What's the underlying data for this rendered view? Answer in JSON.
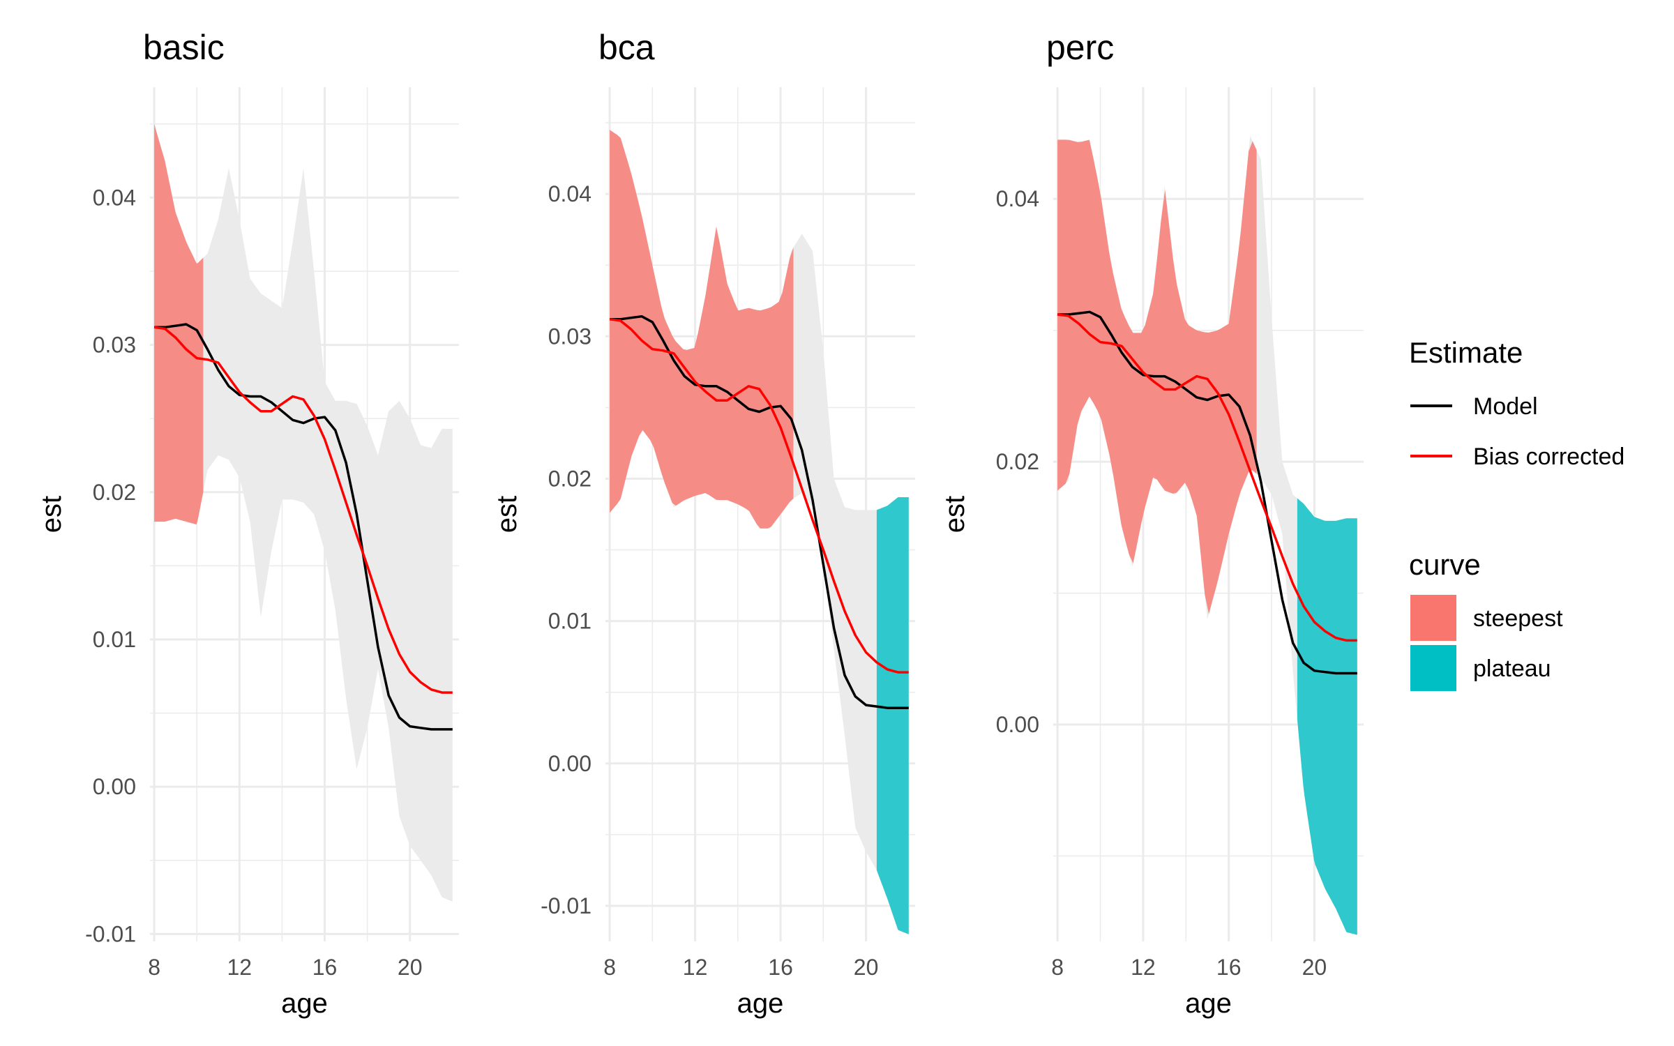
{
  "chart_data": [
    {
      "type": "line",
      "title": "basic",
      "xlabel": "age",
      "ylabel": "est",
      "xlim": [
        7.8,
        22.3
      ],
      "ylim": [
        -0.0105,
        0.0475
      ],
      "xticks": [
        8,
        12,
        16,
        20
      ],
      "xtick_labels": [
        "8",
        "12",
        "16",
        "20"
      ],
      "yticks": [
        -0.01,
        0.0,
        0.01,
        0.02,
        0.03,
        0.04
      ],
      "ytick_labels": [
        "-0.01",
        "0.00",
        "0.01",
        "0.02",
        "0.03",
        "0.04"
      ],
      "grid": true,
      "ribbon": {
        "x": [
          8.0,
          8.5,
          9.0,
          9.5,
          10.0,
          10.5,
          11.0,
          11.5,
          12.0,
          12.5,
          13.0,
          13.5,
          14.0,
          14.5,
          15.0,
          15.5,
          16.0,
          16.5,
          17.0,
          17.5,
          18.0,
          18.5,
          19.0,
          19.5,
          20.0,
          20.5,
          21.0,
          21.5,
          22.0
        ],
        "lower": [
          0.018,
          0.018,
          0.0182,
          0.018,
          0.0178,
          0.0215,
          0.0225,
          0.0222,
          0.021,
          0.018,
          0.0115,
          0.016,
          0.0195,
          0.0195,
          0.0193,
          0.0185,
          0.016,
          0.012,
          0.006,
          0.0012,
          0.004,
          0.008,
          0.004,
          -0.002,
          -0.004,
          -0.005,
          -0.006,
          -0.0075,
          -0.0078
        ],
        "upper": [
          0.045,
          0.0425,
          0.039,
          0.037,
          0.0355,
          0.0362,
          0.0385,
          0.042,
          0.0385,
          0.0345,
          0.0335,
          0.033,
          0.0325,
          0.037,
          0.042,
          0.035,
          0.0275,
          0.0262,
          0.0262,
          0.026,
          0.0245,
          0.0225,
          0.0255,
          0.0262,
          0.025,
          0.0232,
          0.023,
          0.0243,
          0.0243
        ]
      },
      "highlights": [
        {
          "curve": "steepest",
          "x_from": 8.0,
          "x_to": 10.3
        },
        {
          "curve": "plateau",
          "x_from": null,
          "x_to": null
        }
      ],
      "series": [
        {
          "name": "Model",
          "x": [
            8.0,
            8.5,
            9.0,
            9.5,
            10.0,
            10.5,
            11.0,
            11.5,
            12.0,
            12.5,
            13.0,
            13.5,
            14.0,
            14.5,
            15.0,
            15.5,
            16.0,
            16.5,
            17.0,
            17.5,
            18.0,
            18.5,
            19.0,
            19.5,
            20.0,
            20.5,
            21.0,
            21.5,
            22.0
          ],
          "y": [
            0.0312,
            0.0312,
            0.0313,
            0.0314,
            0.031,
            0.0297,
            0.0283,
            0.0272,
            0.0266,
            0.0265,
            0.0265,
            0.0261,
            0.0255,
            0.0249,
            0.0247,
            0.025,
            0.0251,
            0.0242,
            0.022,
            0.0185,
            0.014,
            0.0095,
            0.0062,
            0.0047,
            0.0041,
            0.004,
            0.0039,
            0.0039,
            0.0039
          ]
        },
        {
          "name": "Bias corrected",
          "x": [
            8.0,
            8.5,
            9.0,
            9.5,
            10.0,
            10.5,
            11.0,
            11.5,
            12.0,
            12.5,
            13.0,
            13.5,
            14.0,
            14.5,
            15.0,
            15.5,
            16.0,
            16.5,
            17.0,
            17.5,
            18.0,
            18.5,
            19.0,
            19.5,
            20.0,
            20.5,
            21.0,
            21.5,
            22.0
          ],
          "y": [
            0.0312,
            0.0311,
            0.0305,
            0.0297,
            0.0291,
            0.029,
            0.0288,
            0.0278,
            0.0268,
            0.0261,
            0.0255,
            0.0255,
            0.026,
            0.0265,
            0.0263,
            0.0252,
            0.0236,
            0.0215,
            0.0193,
            0.0171,
            0.015,
            0.0128,
            0.0107,
            0.009,
            0.0078,
            0.0071,
            0.0066,
            0.0064,
            0.0064
          ]
        }
      ]
    },
    {
      "type": "line",
      "title": "bca",
      "xlabel": "age",
      "ylabel": "est",
      "xlim": [
        7.8,
        22.3
      ],
      "ylim": [
        -0.0125,
        0.0475
      ],
      "xticks": [
        8,
        12,
        16,
        20
      ],
      "xtick_labels": [
        "8",
        "12",
        "16",
        "20"
      ],
      "yticks": [
        -0.01,
        0.0,
        0.01,
        0.02,
        0.03,
        0.04
      ],
      "ytick_labels": [
        "-0.01",
        "0.00",
        "0.01",
        "0.02",
        "0.03",
        "0.04"
      ],
      "grid": true,
      "ribbon": {
        "x": [
          8.0,
          8.5,
          9.0,
          9.5,
          10.0,
          10.5,
          11.0,
          11.5,
          12.0,
          12.5,
          13.0,
          13.5,
          14.0,
          14.5,
          15.0,
          15.5,
          16.0,
          16.5,
          17.0,
          17.5,
          18.0,
          18.5,
          19.0,
          19.5,
          20.0,
          20.5,
          21.0,
          21.5,
          22.0
        ],
        "lower": [
          0.0176,
          0.0185,
          0.0215,
          0.0235,
          0.0225,
          0.02,
          0.018,
          0.0185,
          0.0188,
          0.019,
          0.0185,
          0.0185,
          0.0182,
          0.0178,
          0.0165,
          0.0165,
          0.0175,
          0.0185,
          0.019,
          0.018,
          0.014,
          0.008,
          0.002,
          -0.0045,
          -0.0062,
          -0.0075,
          -0.0095,
          -0.0117,
          -0.012
        ],
        "upper": [
          0.0445,
          0.044,
          0.0415,
          0.0385,
          0.035,
          0.0315,
          0.0298,
          0.029,
          0.0292,
          0.033,
          0.0378,
          0.0337,
          0.0318,
          0.032,
          0.0318,
          0.032,
          0.0325,
          0.036,
          0.0372,
          0.036,
          0.029,
          0.02,
          0.018,
          0.0178,
          0.0178,
          0.0178,
          0.0181,
          0.0187,
          0.0187
        ]
      },
      "highlights": [
        {
          "curve": "steepest",
          "x_from": 8.0,
          "x_to": 16.6
        },
        {
          "curve": "plateau",
          "x_from": 20.5,
          "x_to": 22.0
        }
      ],
      "series": [
        {
          "name": "Model",
          "x": [
            8.0,
            8.5,
            9.0,
            9.5,
            10.0,
            10.5,
            11.0,
            11.5,
            12.0,
            12.5,
            13.0,
            13.5,
            14.0,
            14.5,
            15.0,
            15.5,
            16.0,
            16.5,
            17.0,
            17.5,
            18.0,
            18.5,
            19.0,
            19.5,
            20.0,
            20.5,
            21.0,
            21.5,
            22.0
          ],
          "y": [
            0.0312,
            0.0312,
            0.0313,
            0.0314,
            0.031,
            0.0297,
            0.0283,
            0.0272,
            0.0266,
            0.0265,
            0.0265,
            0.0261,
            0.0255,
            0.0249,
            0.0247,
            0.025,
            0.0251,
            0.0242,
            0.022,
            0.0185,
            0.014,
            0.0095,
            0.0062,
            0.0047,
            0.0041,
            0.004,
            0.0039,
            0.0039,
            0.0039
          ]
        },
        {
          "name": "Bias corrected",
          "x": [
            8.0,
            8.5,
            9.0,
            9.5,
            10.0,
            10.5,
            11.0,
            11.5,
            12.0,
            12.5,
            13.0,
            13.5,
            14.0,
            14.5,
            15.0,
            15.5,
            16.0,
            16.5,
            17.0,
            17.5,
            18.0,
            18.5,
            19.0,
            19.5,
            20.0,
            20.5,
            21.0,
            21.5,
            22.0
          ],
          "y": [
            0.0312,
            0.0311,
            0.0305,
            0.0297,
            0.0291,
            0.029,
            0.0288,
            0.0278,
            0.0268,
            0.0261,
            0.0255,
            0.0255,
            0.026,
            0.0265,
            0.0263,
            0.0252,
            0.0236,
            0.0215,
            0.0193,
            0.0171,
            0.015,
            0.0128,
            0.0107,
            0.009,
            0.0078,
            0.0071,
            0.0066,
            0.0064,
            0.0064
          ]
        }
      ]
    },
    {
      "type": "line",
      "title": "perc",
      "xlabel": "age",
      "ylabel": "est",
      "xlim": [
        7.8,
        22.3
      ],
      "ylim": [
        -0.0165,
        0.0485
      ],
      "xticks": [
        8,
        12,
        16,
        20
      ],
      "xtick_labels": [
        "8",
        "12",
        "16",
        "20"
      ],
      "yticks": [
        0.0,
        0.02,
        0.04
      ],
      "ytick_labels": [
        "0.00",
        "0.02",
        "0.04"
      ],
      "grid": true,
      "ribbon": {
        "x": [
          8.0,
          8.5,
          9.0,
          9.5,
          10.0,
          10.5,
          11.0,
          11.5,
          12.0,
          12.5,
          13.0,
          13.5,
          14.0,
          14.5,
          15.0,
          15.5,
          16.0,
          16.5,
          17.0,
          17.5,
          18.0,
          18.5,
          19.0,
          19.5,
          20.0,
          20.5,
          21.0,
          21.5,
          22.0
        ],
        "lower": [
          0.0178,
          0.0185,
          0.0235,
          0.025,
          0.0235,
          0.02,
          0.015,
          0.012,
          0.016,
          0.019,
          0.0178,
          0.0175,
          0.0185,
          0.016,
          0.008,
          0.011,
          0.0145,
          0.0175,
          0.0195,
          0.0188,
          0.0175,
          0.0145,
          0.004,
          -0.005,
          -0.0105,
          -0.0125,
          -0.014,
          -0.0158,
          -0.016
        ],
        "upper": [
          0.0445,
          0.0445,
          0.0443,
          0.0445,
          0.0405,
          0.035,
          0.0315,
          0.0298,
          0.0298,
          0.033,
          0.041,
          0.034,
          0.0305,
          0.03,
          0.0298,
          0.03,
          0.0305,
          0.0365,
          0.0448,
          0.043,
          0.031,
          0.02,
          0.0175,
          0.0168,
          0.0158,
          0.0155,
          0.0155,
          0.0157,
          0.0157
        ]
      },
      "highlights": [
        {
          "curve": "steepest",
          "x_from": 8.0,
          "x_to": 17.3
        },
        {
          "curve": "plateau",
          "x_from": 19.2,
          "x_to": 22.0
        }
      ],
      "series": [
        {
          "name": "Model",
          "x": [
            8.0,
            8.5,
            9.0,
            9.5,
            10.0,
            10.5,
            11.0,
            11.5,
            12.0,
            12.5,
            13.0,
            13.5,
            14.0,
            14.5,
            15.0,
            15.5,
            16.0,
            16.5,
            17.0,
            17.5,
            18.0,
            18.5,
            19.0,
            19.5,
            20.0,
            20.5,
            21.0,
            21.5,
            22.0
          ],
          "y": [
            0.0312,
            0.0312,
            0.0313,
            0.0314,
            0.031,
            0.0297,
            0.0283,
            0.0272,
            0.0266,
            0.0265,
            0.0265,
            0.0261,
            0.0255,
            0.0249,
            0.0247,
            0.025,
            0.0251,
            0.0242,
            0.022,
            0.0185,
            0.014,
            0.0095,
            0.0062,
            0.0047,
            0.0041,
            0.004,
            0.0039,
            0.0039,
            0.0039
          ]
        },
        {
          "name": "Bias corrected",
          "x": [
            8.0,
            8.5,
            9.0,
            9.5,
            10.0,
            10.5,
            11.0,
            11.5,
            12.0,
            12.5,
            13.0,
            13.5,
            14.0,
            14.5,
            15.0,
            15.5,
            16.0,
            16.5,
            17.0,
            17.5,
            18.0,
            18.5,
            19.0,
            19.5,
            20.0,
            20.5,
            21.0,
            21.5,
            22.0
          ],
          "y": [
            0.0312,
            0.0311,
            0.0305,
            0.0297,
            0.0291,
            0.029,
            0.0288,
            0.0278,
            0.0268,
            0.0261,
            0.0255,
            0.0255,
            0.026,
            0.0265,
            0.0263,
            0.0252,
            0.0236,
            0.0215,
            0.0193,
            0.0171,
            0.015,
            0.0128,
            0.0107,
            0.009,
            0.0078,
            0.0071,
            0.0066,
            0.0064,
            0.0064
          ]
        }
      ]
    }
  ],
  "legend": {
    "placement": "right",
    "estimate": {
      "title": "Estimate",
      "items": [
        {
          "label": "Model",
          "color": "#000000"
        },
        {
          "label": "Bias corrected",
          "color": "#ff0000"
        }
      ]
    },
    "curve": {
      "title": "curve",
      "items": [
        {
          "label": "steepest",
          "color": "#f8766d"
        },
        {
          "label": "plateau",
          "color": "#00bfc4"
        }
      ]
    }
  },
  "colors": {
    "ribbon": "#ebebeb",
    "grid": "#ebebeb",
    "background": "#ffffff"
  }
}
